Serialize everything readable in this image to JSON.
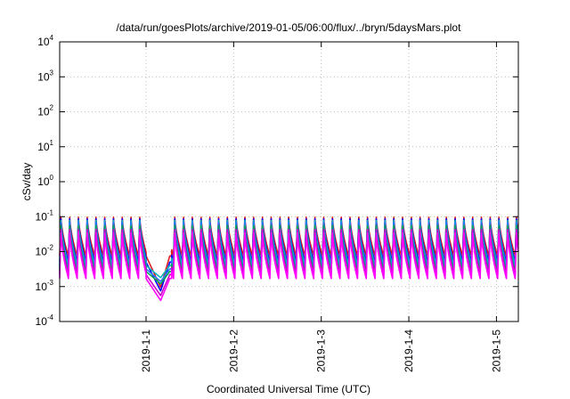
{
  "chart_data": {
    "type": "line",
    "title": "/data/run/goesPlots/archive/2019-01-05/06:00/flux/../bryn/5daysMars.plot",
    "xlabel": "Coordinated Universal Time (UTC)",
    "ylabel": "cSv/day",
    "y_scale": "log",
    "ylim": [
      0.0001,
      10000
    ],
    "y_ticks": [
      {
        "value": 0.0001,
        "base": "10",
        "exp": "-4"
      },
      {
        "value": 0.001,
        "base": "10",
        "exp": "-3"
      },
      {
        "value": 0.01,
        "base": "10",
        "exp": "-2"
      },
      {
        "value": 0.1,
        "base": "10",
        "exp": "-1"
      },
      {
        "value": 1,
        "base": "10",
        "exp": "0"
      },
      {
        "value": 10,
        "base": "10",
        "exp": "1"
      },
      {
        "value": 100,
        "base": "10",
        "exp": "2"
      },
      {
        "value": 1000,
        "base": "10",
        "exp": "3"
      },
      {
        "value": 10000,
        "base": "10",
        "exp": "4"
      }
    ],
    "xlim": [
      "2018-12-31T00:20",
      "2019-01-05T06:00"
    ],
    "x_ticks": [
      {
        "value": "2019-01-01T00:00",
        "label": "2019-1-1"
      },
      {
        "value": "2019-01-02T00:00",
        "label": "2019-1-2"
      },
      {
        "value": "2019-01-03T00:00",
        "label": "2019-1-3"
      },
      {
        "value": "2019-01-04T00:00",
        "label": "2019-1-4"
      },
      {
        "value": "2019-01-05T00:00",
        "label": "2019-1-5"
      }
    ],
    "grid": true,
    "legend": "none",
    "cycle_period_hours": 2.4,
    "dip": {
      "start": "2019-01-01T00:00",
      "minimum": "2019-01-01T04:00",
      "end": "2019-01-01T07:00"
    },
    "series": [
      {
        "color": "#e41a1c",
        "peak": 0.11,
        "trough": 0.0075,
        "dip_min": 0.00095
      },
      {
        "color": "#0000ff",
        "peak": 0.1,
        "trough": 0.005,
        "dip_min": 0.00075
      },
      {
        "color": "#00b8b8",
        "peak": 0.09,
        "trough": 0.004,
        "dip_min": 0.0018
      },
      {
        "color": "#2979ff",
        "peak": 0.08,
        "trough": 0.0032,
        "dip_min": 0.0014
      },
      {
        "color": "#00aa55",
        "peak": 0.065,
        "trough": 0.0027,
        "dip_min": 0.0012
      },
      {
        "color": "#cc00cc",
        "peak": 0.05,
        "trough": 0.0022,
        "dip_min": 0.00055
      },
      {
        "color": "#ff00ff",
        "peak": 0.04,
        "trough": 0.0017,
        "dip_min": 0.0004
      }
    ]
  }
}
